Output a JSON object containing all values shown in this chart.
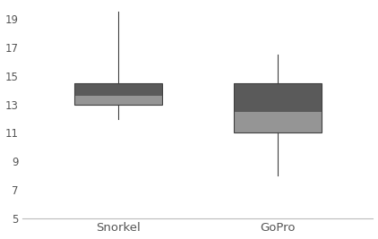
{
  "categories": [
    "Snorkel",
    "GoPro"
  ],
  "boxes": [
    {
      "whisker_low": 12.0,
      "q1": 13.0,
      "median": 13.6,
      "q3": 14.5,
      "whisker_high": 19.5
    },
    {
      "whisker_low": 8.0,
      "q1": 11.0,
      "median": 12.5,
      "q3": 14.5,
      "whisker_high": 16.5
    }
  ],
  "box_color_upper": "#5a5a5a",
  "box_color_lower": "#959595",
  "whisker_color": "#404040",
  "ylim": [
    5,
    20
  ],
  "yticks": [
    5,
    7,
    9,
    11,
    13,
    15,
    17,
    19
  ],
  "box_width": 0.55,
  "positions": [
    1,
    2
  ],
  "xlim": [
    0.4,
    2.6
  ],
  "background_color": "#ffffff",
  "spine_color": "#bbbbbb",
  "tick_label_color": "#555555",
  "tick_fontsize": 8.5,
  "xlabel_fontsize": 9.5
}
